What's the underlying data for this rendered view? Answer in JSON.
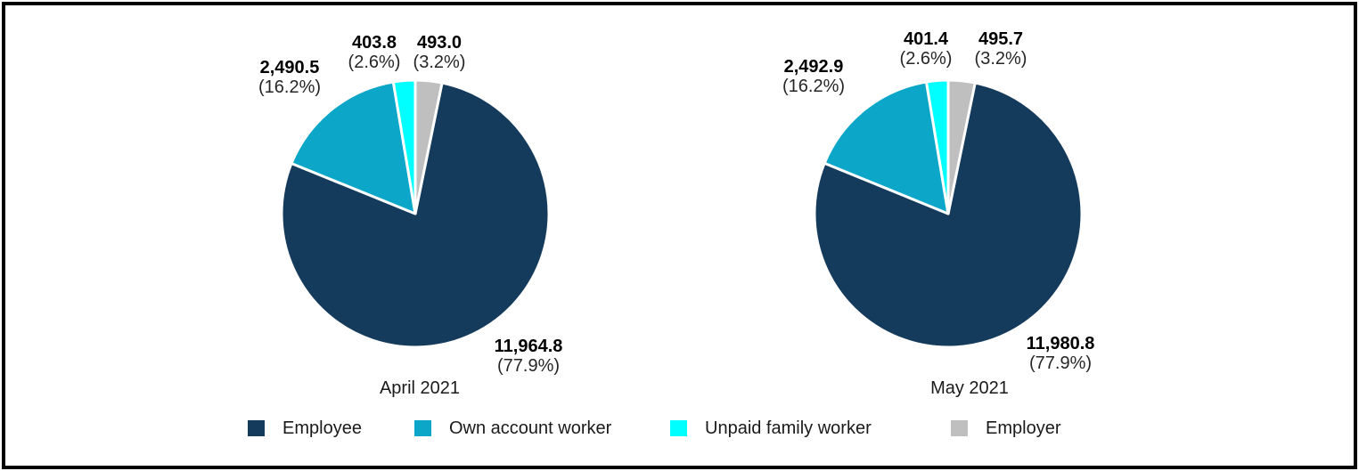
{
  "colors": {
    "employee": "#143A5C",
    "own_account": "#0CA6C9",
    "unpaid_family": "#00FFFF",
    "employer": "#BFBFBF",
    "slice_border": "#FFFFFF",
    "frame_border": "#000000",
    "text": "#1a1a1a"
  },
  "legend": {
    "items": [
      {
        "label": "Employee",
        "color": "#143A5C"
      },
      {
        "label": "Own account worker",
        "color": "#0CA6C9"
      },
      {
        "label": "Unpaid family worker",
        "color": "#00FFFF"
      },
      {
        "label": "Employer",
        "color": "#BFBFBF"
      }
    ]
  },
  "chart_data": [
    {
      "type": "pie",
      "title": "April 2021",
      "categories": [
        "Employee",
        "Own account worker",
        "Unpaid family worker",
        "Employer"
      ],
      "values": [
        11964.8,
        2490.5,
        403.8,
        493.0
      ],
      "colors": [
        "#143A5C",
        "#0CA6C9",
        "#00FFFF",
        "#BFBFBF"
      ],
      "labels": {
        "employee": {
          "value": "11,964.8",
          "pct": "(77.9%)"
        },
        "own_account": {
          "value": "2,490.5",
          "pct": "(16.2%)"
        },
        "unpaid_family": {
          "value": "403.8",
          "pct": "(2.6%)"
        },
        "employer": {
          "value": "493.0",
          "pct": "(3.2%)"
        }
      }
    },
    {
      "type": "pie",
      "title": "May 2021",
      "categories": [
        "Employee",
        "Own account worker",
        "Unpaid family worker",
        "Employer"
      ],
      "values": [
        11980.8,
        2492.9,
        401.4,
        495.7
      ],
      "colors": [
        "#143A5C",
        "#0CA6C9",
        "#00FFFF",
        "#BFBFBF"
      ],
      "labels": {
        "employee": {
          "value": "11,980.8",
          "pct": "(77.9%)"
        },
        "own_account": {
          "value": "2,492.9",
          "pct": "(16.2%)"
        },
        "unpaid_family": {
          "value": "401.4",
          "pct": "(2.6%)"
        },
        "employer": {
          "value": "495.7",
          "pct": "(3.2%)"
        }
      }
    }
  ]
}
